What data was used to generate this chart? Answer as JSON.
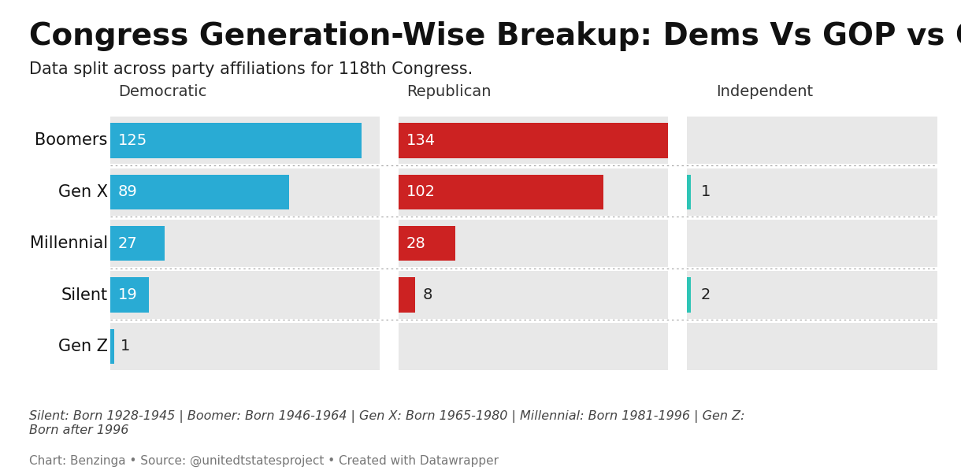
{
  "title": "Congress Generation-Wise Breakup: Dems Vs GOP vs Other",
  "subtitle": "Data split across party affiliations for 118th Congress.",
  "footer_note": "Silent: Born 1928-1945 | Boomer: Born 1946-1964 | Gen X: Born 1965-1980 | Millennial: Born 1981-1996 | Gen Z:\nBorn after 1996",
  "footer_source": "Chart: Benzinga • Source: @unitedtstatesproject • Created with Datawrapper",
  "generations": [
    "Boomers",
    "Gen X",
    "Millennial",
    "Silent",
    "Gen Z"
  ],
  "democratic": [
    125,
    89,
    27,
    19,
    1
  ],
  "republican": [
    134,
    102,
    28,
    8,
    0
  ],
  "independent": [
    0,
    1,
    0,
    2,
    0
  ],
  "dem_color": "#29ABD4",
  "rep_color": "#CC2222",
  "ind_color": "#2EC4B6",
  "bg_row_color": "#E8E8E8",
  "bg_white": "#FFFFFF",
  "col_headers": [
    "Democratic",
    "Republican",
    "Independent"
  ],
  "max_value": 134,
  "title_fontsize": 28,
  "subtitle_fontsize": 15,
  "header_fontsize": 14,
  "row_label_fontsize": 15,
  "bar_label_fontsize": 14,
  "footer_fontsize": 11.5
}
